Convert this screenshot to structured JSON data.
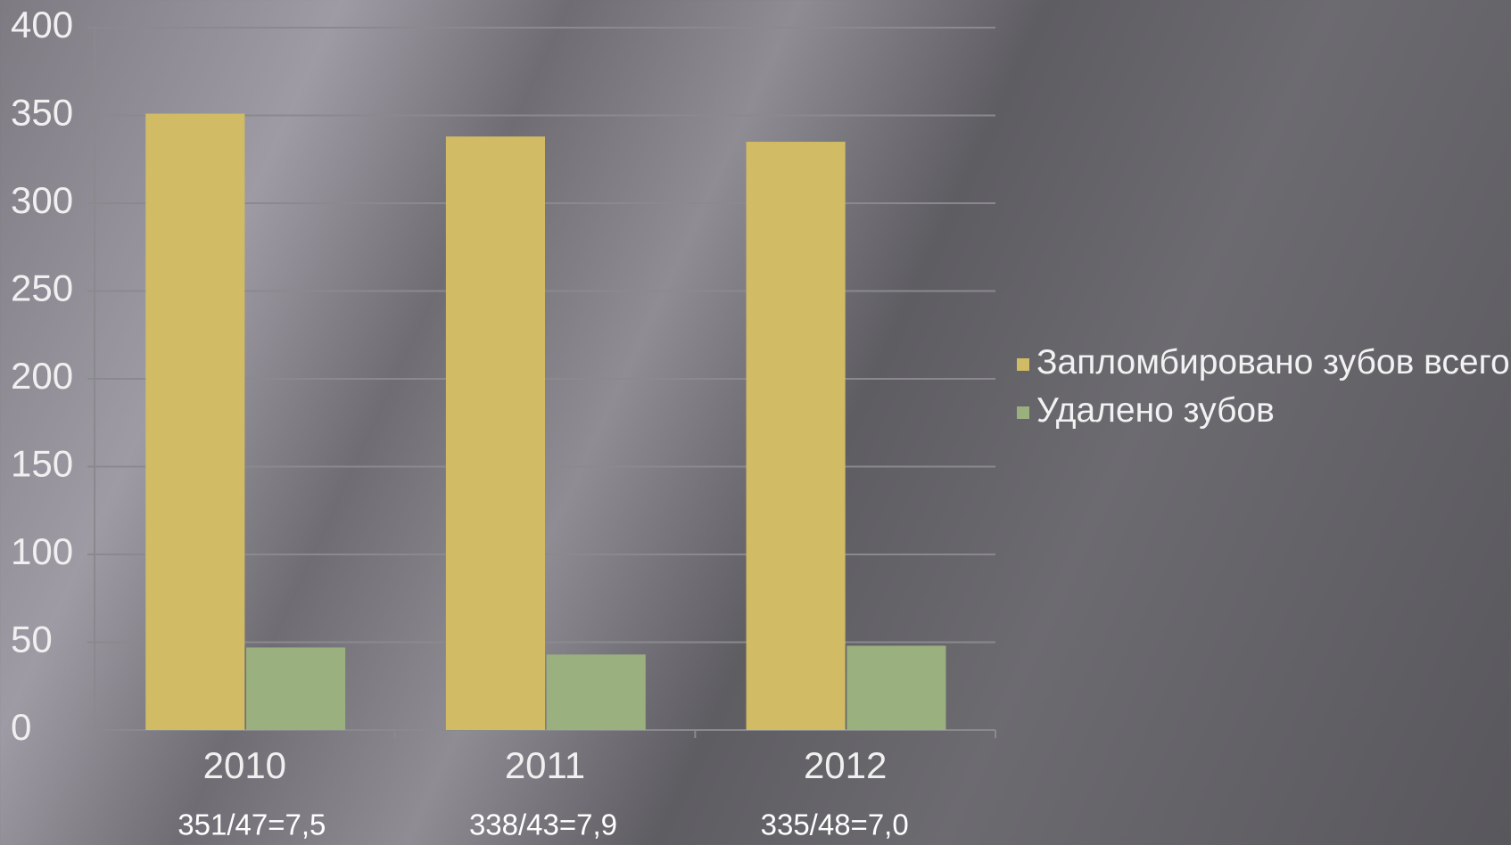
{
  "chart_data": {
    "type": "bar",
    "categories": [
      "2010",
      "2011",
      "2012"
    ],
    "series": [
      {
        "name": "Запломбировано зубов всего",
        "color": "#d1bb64",
        "values": [
          351,
          338,
          335
        ]
      },
      {
        "name": "Удалено зубов",
        "color": "#9bb07f",
        "values": [
          47,
          43,
          48
        ]
      }
    ],
    "ylim": [
      0,
      400
    ],
    "yticks": [
      0,
      50,
      100,
      150,
      200,
      250,
      300,
      350,
      400
    ],
    "grid": true,
    "legend": "right",
    "annotations": [
      "351/47=7,5",
      "338/43=7,9",
      "335/48=7,0"
    ]
  }
}
